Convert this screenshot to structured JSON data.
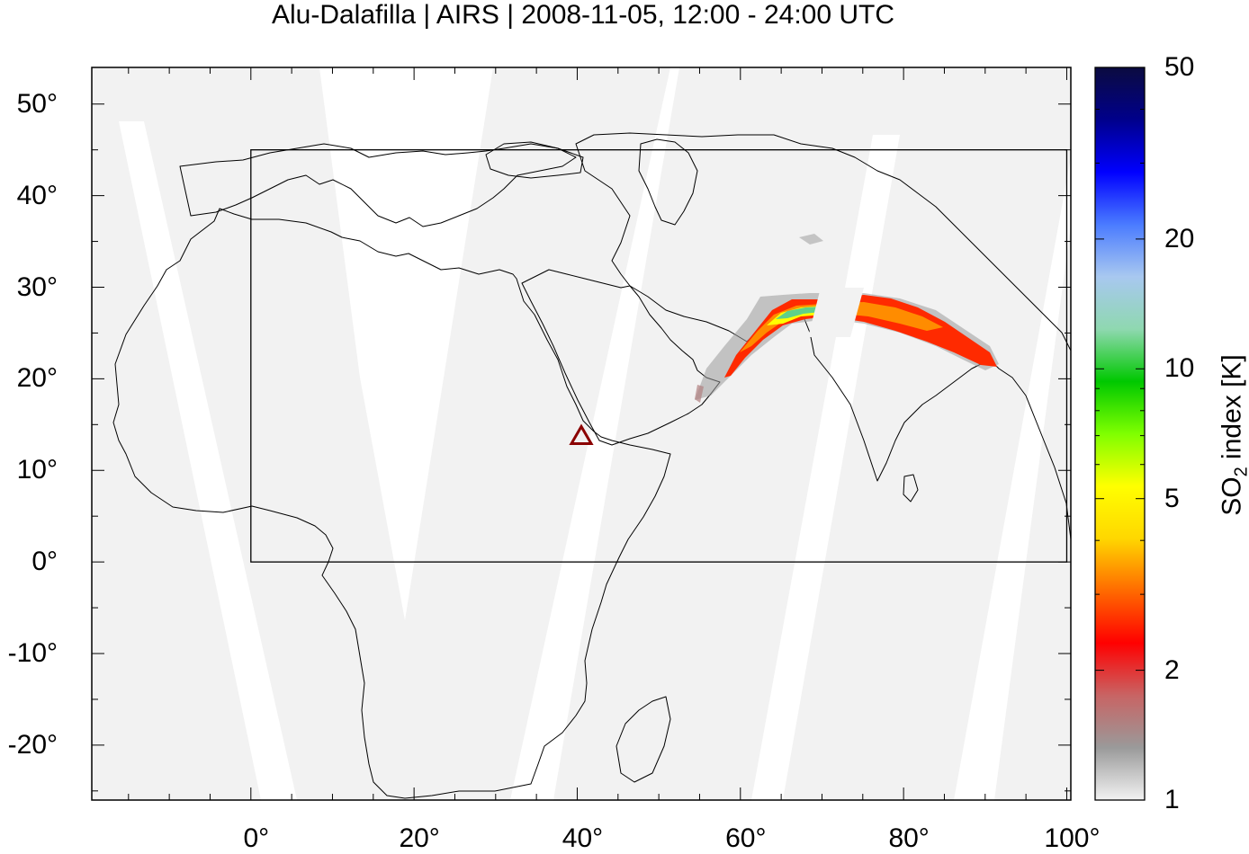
{
  "title": "Alu-Dalafilla | AIRS | 2008-11-05, 12:00 - 24:00 UTC",
  "map": {
    "lon_range": [
      -19.5,
      100.5
    ],
    "lat_range": [
      -26,
      54
    ],
    "x_ticks": [
      {
        "value": 0,
        "label": "0°"
      },
      {
        "value": 20,
        "label": "20°"
      },
      {
        "value": 40,
        "label": "40°"
      },
      {
        "value": 60,
        "label": "60°"
      },
      {
        "value": 80,
        "label": "80°"
      },
      {
        "value": 100,
        "label": "100°"
      }
    ],
    "y_ticks": [
      {
        "value": 50,
        "label": "50°"
      },
      {
        "value": 40,
        "label": "40°"
      },
      {
        "value": 30,
        "label": "30°"
      },
      {
        "value": 20,
        "label": "20°"
      },
      {
        "value": 10,
        "label": "10°"
      },
      {
        "value": 0,
        "label": "0°"
      },
      {
        "value": -10,
        "label": "-10°"
      },
      {
        "value": -20,
        "label": "-20°"
      }
    ],
    "region_box": {
      "lon": [
        0,
        100
      ],
      "lat": [
        0,
        45
      ]
    },
    "volcano": {
      "name": "Alu-Dalafilla",
      "lon": 40.5,
      "lat": 13.8,
      "marker": "triangle-outline",
      "color": "#8b0000"
    },
    "background_color": "#f2f2f2",
    "swath_gap_color": "#ffffff"
  },
  "colorbar": {
    "label_main": "SO",
    "label_sub": "2",
    "label_rest": " index [K]",
    "scale": "log",
    "range": [
      1,
      50
    ],
    "ticks": [
      {
        "value": 1,
        "label": "1"
      },
      {
        "value": 2,
        "label": "2"
      },
      {
        "value": 5,
        "label": "5"
      },
      {
        "value": 10,
        "label": "10"
      },
      {
        "value": 20,
        "label": "20"
      },
      {
        "value": 50,
        "label": "50"
      }
    ],
    "colors": [
      "#f2f2f2",
      "#9a9a9a",
      "#c86464",
      "#ff0000",
      "#ff6a00",
      "#ffd700",
      "#ffff00",
      "#7fff00",
      "#00c800",
      "#8fd8b0",
      "#a8c8f0",
      "#4a7bff",
      "#0000ff",
      "#00008b",
      "#0b0b40"
    ]
  }
}
